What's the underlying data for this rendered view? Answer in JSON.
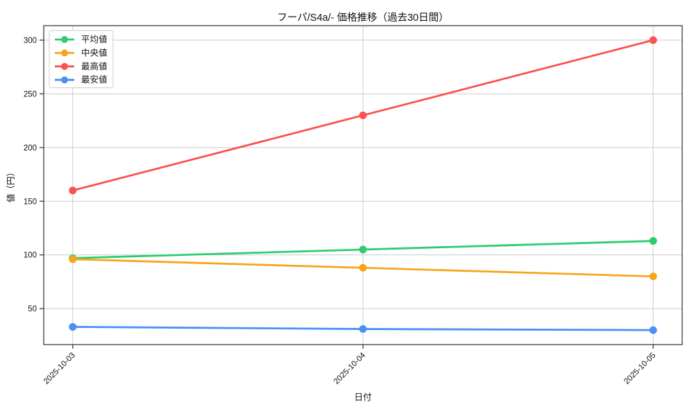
{
  "chart_data": {
    "type": "line",
    "title": "フーパ/S4a/- 価格推移（過去30日間）",
    "xlabel": "日付",
    "ylabel": "値（円）",
    "categories": [
      "2025-10-03",
      "2025-10-04",
      "2025-10-05"
    ],
    "series": [
      {
        "name": "平均値",
        "color": "#2ecc71",
        "values": [
          97,
          105,
          113
        ]
      },
      {
        "name": "中央値",
        "color": "#f8a51b",
        "values": [
          96,
          88,
          80
        ]
      },
      {
        "name": "最高値",
        "color": "#fa5252",
        "values": [
          160,
          230,
          300
        ]
      },
      {
        "name": "最安値",
        "color": "#4a90f4",
        "values": [
          33,
          31,
          30
        ]
      }
    ],
    "yticks": [
      50,
      100,
      150,
      200,
      250,
      300
    ],
    "ylim": [
      16.5,
      313.5
    ],
    "grid": true,
    "legend_position": "upper-left",
    "colors": {
      "grid": "#cccccc",
      "spine": "#2b2b2b",
      "text": "#111111",
      "legend_border": "#cccccc",
      "legend_bg": "#ffffff"
    }
  }
}
